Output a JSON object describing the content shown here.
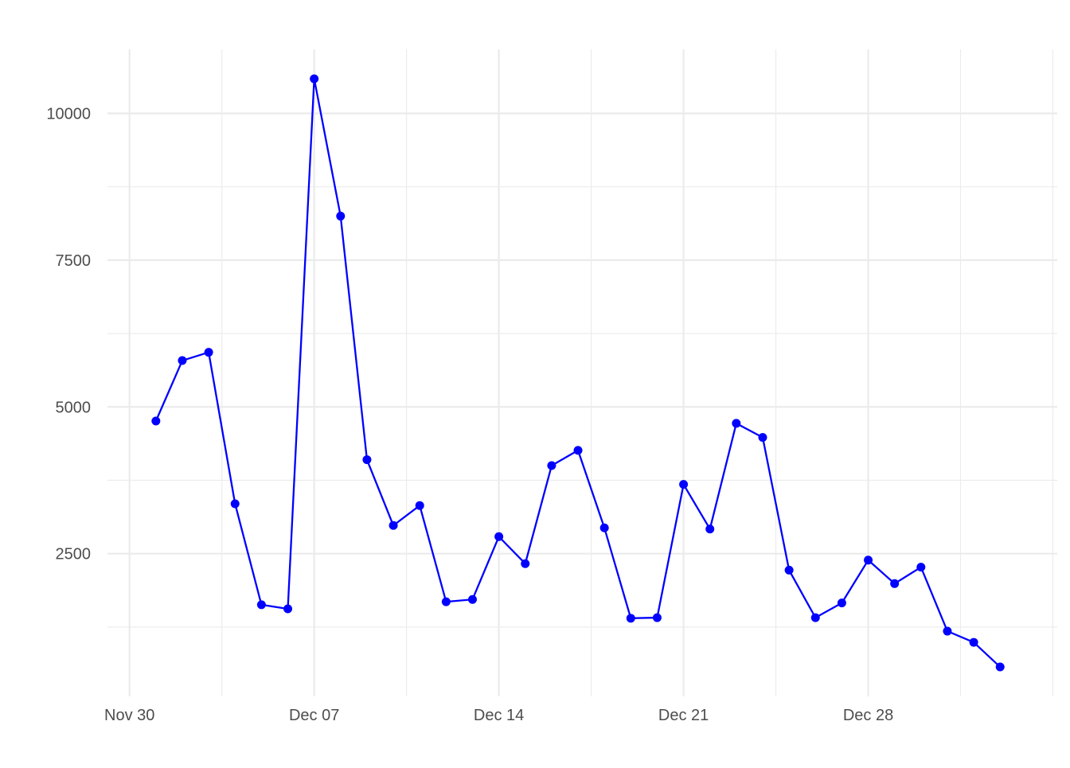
{
  "chart_data": {
    "type": "line",
    "title": "",
    "xlabel": "",
    "ylabel": "",
    "grid": true,
    "line_color": "#0000FF",
    "x_tick_labels": [
      "Nov 30",
      "Dec 07",
      "Dec 14",
      "Dec 21",
      "Dec 28"
    ],
    "x_tick_dates": [
      "2023-11-30",
      "2023-12-07",
      "2023-12-14",
      "2023-12-21",
      "2023-12-28"
    ],
    "y_ticks": [
      2500,
      5000,
      7500,
      10000
    ],
    "y_tick_labels": [
      "2500",
      "5000",
      "7500",
      "10000"
    ],
    "x": [
      "2023-12-01",
      "2023-12-02",
      "2023-12-03",
      "2023-12-04",
      "2023-12-05",
      "2023-12-06",
      "2023-12-07",
      "2023-12-08",
      "2023-12-09",
      "2023-12-10",
      "2023-12-11",
      "2023-12-12",
      "2023-12-13",
      "2023-12-14",
      "2023-12-15",
      "2023-12-16",
      "2023-12-17",
      "2023-12-18",
      "2023-12-19",
      "2023-12-20",
      "2023-12-21",
      "2023-12-22",
      "2023-12-23",
      "2023-12-24",
      "2023-12-25",
      "2023-12-26",
      "2023-12-27",
      "2023-12-28",
      "2023-12-29",
      "2023-12-30",
      "2023-12-31",
      "2024-01-01",
      "2024-01-02"
    ],
    "values": [
      4760,
      5790,
      5930,
      3350,
      1630,
      1560,
      10590,
      8250,
      4100,
      2980,
      3320,
      1680,
      1720,
      2790,
      2330,
      4000,
      4260,
      2940,
      1400,
      1410,
      3680,
      2920,
      4720,
      4480,
      2220,
      1410,
      1660,
      2390,
      1990,
      2270,
      1180,
      990,
      570
    ]
  }
}
